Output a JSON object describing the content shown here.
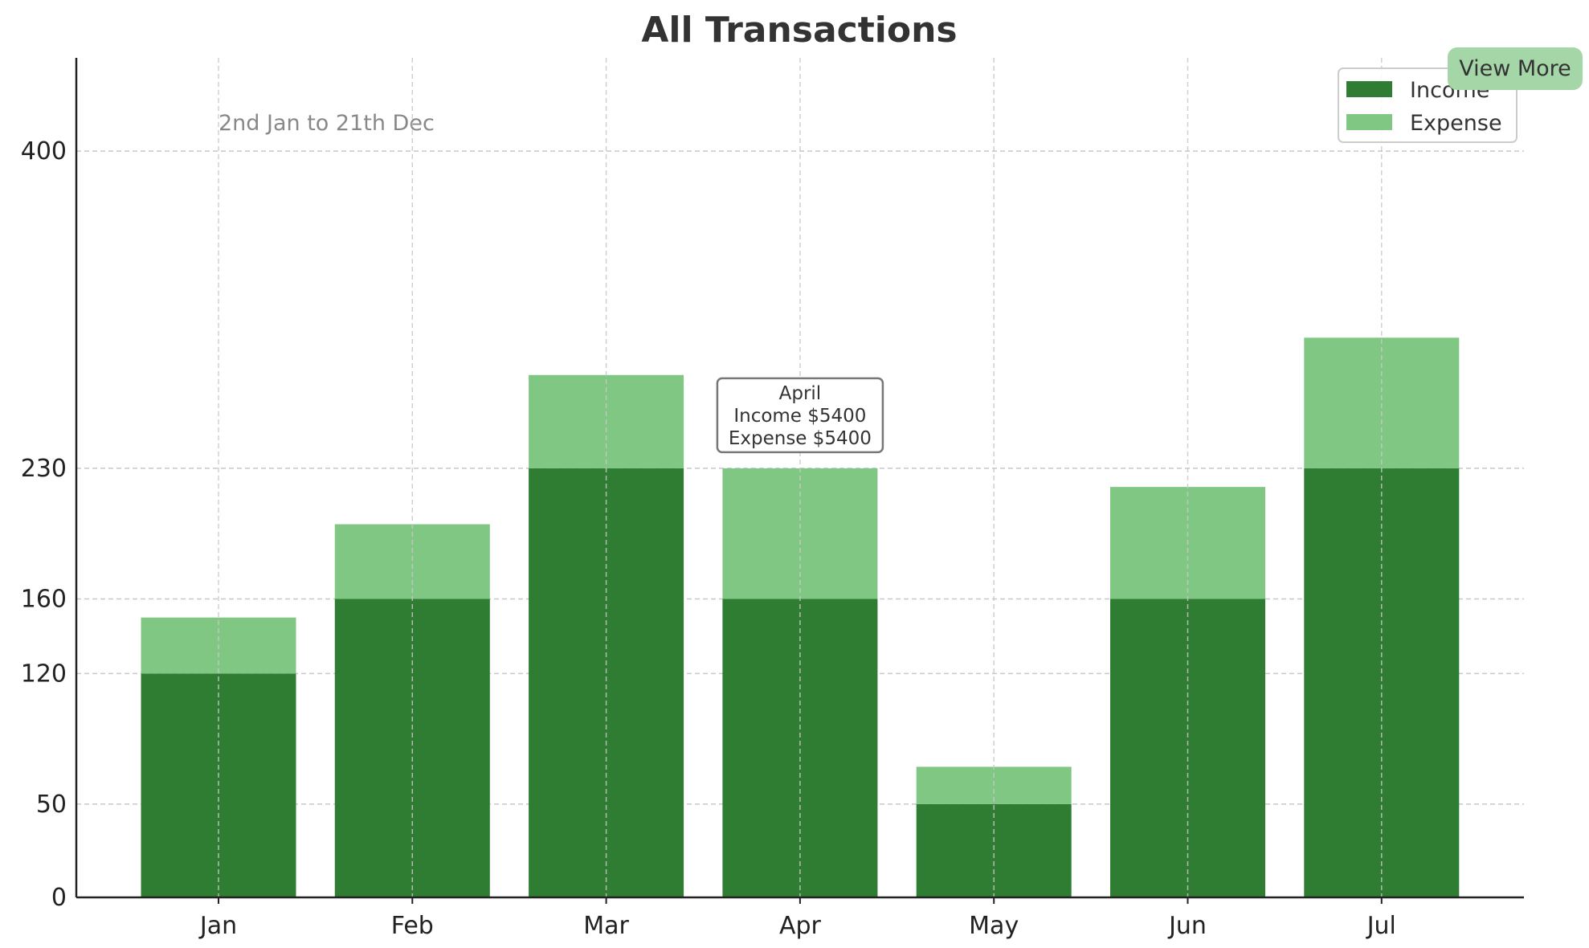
{
  "view_more_label": "View More",
  "chart_data": {
    "type": "bar",
    "stacked": true,
    "title": "All Transactions",
    "subtitle": "2nd Jan to 21th Dec",
    "xlabel": "",
    "ylabel": "",
    "categories": [
      "Jan",
      "Feb",
      "Mar",
      "Apr",
      "May",
      "Jun",
      "Jul"
    ],
    "series": [
      {
        "name": "Income",
        "color": "#2e7d32",
        "values": [
          120,
          160,
          230,
          160,
          50,
          160,
          230
        ]
      },
      {
        "name": "Expense",
        "color": "#81c784",
        "values": [
          30,
          40,
          50,
          70,
          20,
          60,
          70
        ]
      }
    ],
    "ylim": [
      0,
      450
    ],
    "yticks": [
      0,
      50,
      120,
      160,
      230,
      400
    ],
    "grid": true,
    "legend_position": "top-right",
    "tooltip": {
      "category": "Apr",
      "lines": [
        "April",
        "Income $5400",
        "Expense $5400"
      ]
    }
  }
}
